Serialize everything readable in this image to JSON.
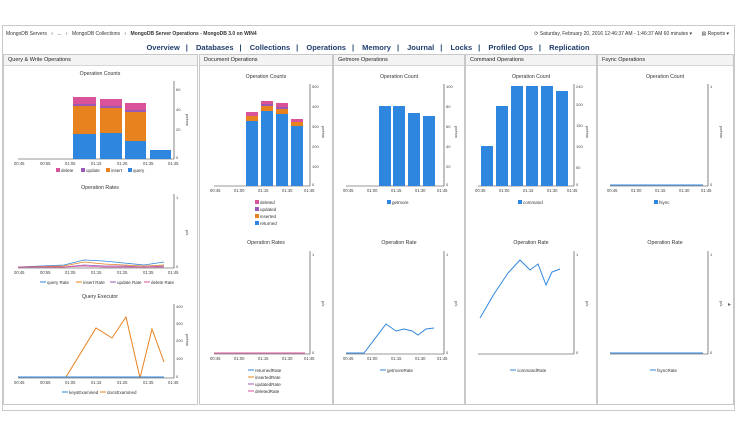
{
  "breadcrumb": {
    "home": "MongoDB Servers",
    "dots": "...",
    "collections": "MongoDB Collections",
    "current": "MongoDB Server Operations - MongoDB 3.0 on WIN4"
  },
  "status": {
    "timestamp": "Saturday, February 20, 2016 12:46:37 AM - 1:46:37 AM 60 minutes",
    "reports": "Reports"
  },
  "nav": [
    "Overview",
    "Databases",
    "Collections",
    "Operations",
    "Memory",
    "Journal",
    "Locks",
    "Profiled Ops",
    "Replication"
  ],
  "panels": {
    "qw": "Query & Write Operations",
    "doc": "Document Operations",
    "getmore": "Getmore Operations",
    "command": "Command Operations",
    "fsync": "Fsync Operations"
  },
  "times6": [
    "00:45",
    "00:55",
    "01:05",
    "01:15",
    "01:25",
    "01:35",
    "01:45"
  ],
  "times5": [
    "00:45",
    "01:00",
    "01:15",
    "01:30",
    "01:45"
  ],
  "charts": {
    "qw_counts": {
      "title": "Operation Counts",
      "ylabel": "pe/min",
      "yticks": [
        "60",
        "40",
        "20",
        "0"
      ],
      "legend": [
        "delete",
        "update",
        "insert",
        "query"
      ]
    },
    "qw_rates": {
      "title": "Operation Rates",
      "ylabel": "p/s",
      "yticks": [
        "1",
        "0"
      ],
      "legend": [
        "query Rate",
        "insert Rate",
        "update Rate",
        "delete Rate"
      ]
    },
    "qw_exec": {
      "title": "Query Executor",
      "ylabel": "pe/min",
      "yticks": [
        "400",
        "300",
        "200",
        "100",
        "0"
      ],
      "legend": [
        "keysExamined",
        "docsExamined"
      ]
    },
    "doc_counts": {
      "title": "Operation Counts",
      "ylabel": "pe/min",
      "yticks": [
        "500",
        "400",
        "300",
        "200",
        "100",
        "0"
      ],
      "legend": [
        "deleted",
        "updated",
        "inserted",
        "returned"
      ]
    },
    "doc_rates": {
      "title": "Operation Rates",
      "ylabel": "p/s",
      "yticks": [
        "1",
        "0"
      ],
      "legend": [
        "returnedRate",
        "insertedRate",
        "updatedRate",
        "deletedRate"
      ]
    },
    "gm_count": {
      "title": "Operation Count",
      "ylabel": "pe/min",
      "yticks": [
        "100",
        "80",
        "60",
        "40",
        "20",
        "0"
      ],
      "legend": [
        "getmore"
      ]
    },
    "gm_rate": {
      "title": "Operation Rate",
      "ylabel": "p/s",
      "yticks": [
        "1",
        "0"
      ],
      "legend": [
        "getmoreRate"
      ]
    },
    "cmd_count": {
      "title": "Operation Count",
      "ylabel": "pe/min",
      "yticks": [
        "240",
        "200",
        "150",
        "100",
        "50",
        "0"
      ],
      "legend": [
        "command"
      ]
    },
    "cmd_rate": {
      "title": "Operation Rate",
      "ylabel": "p/s",
      "yticks": [
        "1",
        "0"
      ],
      "legend": [
        "commandRate"
      ]
    },
    "fs_count": {
      "title": "Operation Count",
      "ylabel": "pe/min",
      "yticks": [
        "1",
        "0"
      ],
      "legend": [
        "fsync"
      ]
    },
    "fs_rate": {
      "title": "Operation Rate",
      "ylabel": "p/s",
      "yticks": [
        "1",
        "0"
      ],
      "legend": [
        "fsyncRate"
      ]
    }
  },
  "colors": {
    "delete": "#d9529a",
    "update": "#9b59b6",
    "insert": "#e8821e",
    "query": "#2f86de",
    "blue": "#2f86de",
    "orange": "#e8821e"
  }
}
